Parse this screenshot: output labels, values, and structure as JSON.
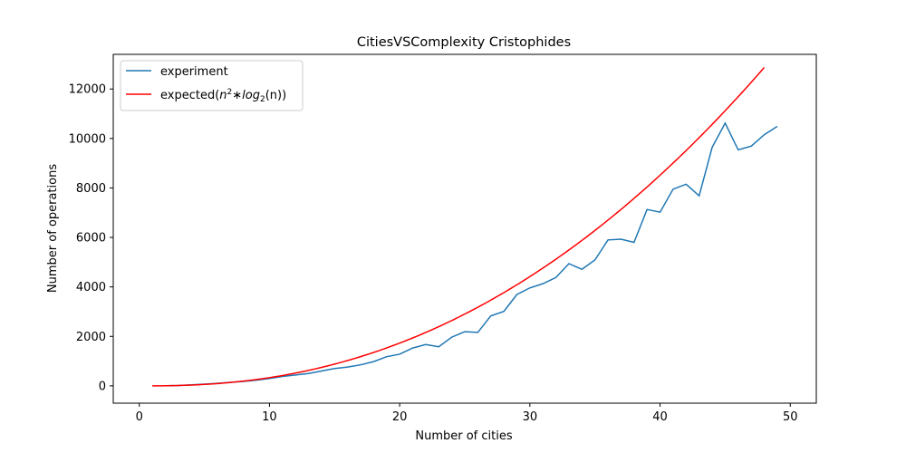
{
  "chart_data": {
    "type": "line",
    "title": "CitiesVSComplexity Cristophides",
    "xlabel": "Number of cities",
    "ylabel": "Number of operations",
    "xlim": [
      -2,
      52
    ],
    "ylim": [
      -700,
      13400
    ],
    "xticks": [
      0,
      10,
      20,
      30,
      40,
      50
    ],
    "yticks": [
      0,
      2000,
      4000,
      6000,
      8000,
      10000,
      12000
    ],
    "grid": false,
    "legend_position": "top-left",
    "series": [
      {
        "name": "experiment",
        "color": "#1f77b4",
        "x": [
          2,
          3,
          4,
          5,
          6,
          7,
          8,
          9,
          10,
          11,
          12,
          13,
          14,
          15,
          16,
          17,
          18,
          19,
          20,
          21,
          22,
          23,
          24,
          25,
          26,
          27,
          28,
          29,
          30,
          31,
          32,
          33,
          34,
          35,
          36,
          37,
          38,
          39,
          40,
          41,
          42,
          43,
          44,
          45,
          46,
          47,
          48,
          49
        ],
        "y": [
          5,
          15,
          40,
          70,
          100,
          140,
          180,
          230,
          300,
          380,
          440,
          500,
          600,
          700,
          760,
          850,
          980,
          1180,
          1280,
          1530,
          1670,
          1580,
          1970,
          2190,
          2160,
          2830,
          3010,
          3690,
          3960,
          4130,
          4380,
          4940,
          4710,
          5090,
          5900,
          5930,
          5800,
          7130,
          7020,
          7950,
          8150,
          7680,
          9640,
          10620,
          9540,
          9690,
          10150,
          10490
        ]
      },
      {
        "name": "expected",
        "label_prefix": "expected(",
        "label_math_base": "n",
        "label_math_exp": "2",
        "label_math_mid": "∗log",
        "label_math_sub": "2",
        "label_suffix": "(n))",
        "color": "#ff0000",
        "formula": "n^2*log2(n)",
        "x_range": [
          1,
          48
        ]
      }
    ]
  }
}
